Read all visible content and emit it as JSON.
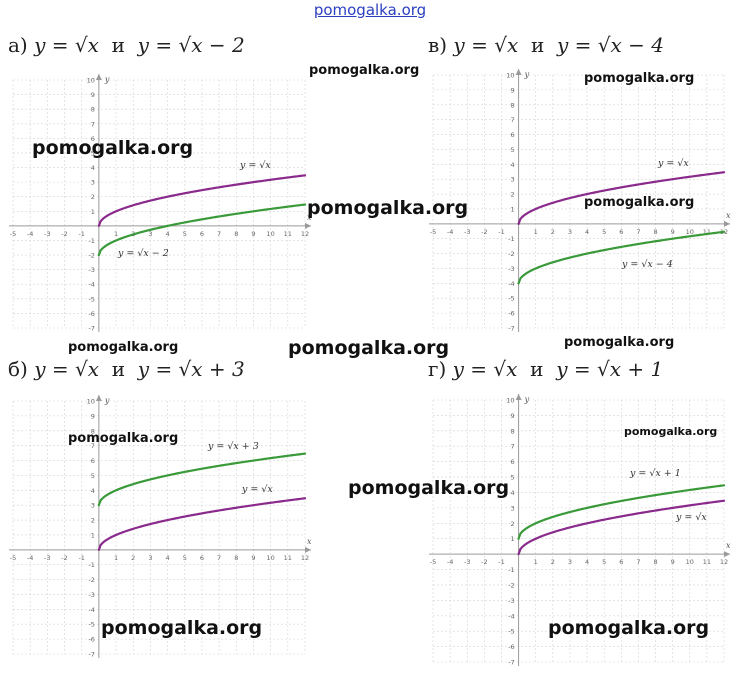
{
  "header": {
    "site": "pomogalka.org"
  },
  "watermarks": [
    "pomogalka.org",
    "pomogalka.org",
    "pomogalka.org",
    "pomogalka.org",
    "pomogalka.org",
    "pomogalka.org",
    "pomogalka.org",
    "pomogalka.org",
    "pomogalka.org",
    "pomogalka.org",
    "pomogalka.org",
    "pomogalka.org",
    "pomogalka.org"
  ],
  "colors": {
    "base_curve": "#8a2a8c",
    "shifted_curve": "#3a9a3a",
    "grid": "#d4d4d4",
    "axis": "#9a9a9a"
  },
  "chart_data": [
    {
      "type": "line",
      "title": {
        "letter": "а)",
        "eq1": "y = √x",
        "conj": "и",
        "eq2": "y = √x − 2"
      },
      "xlabel": "x",
      "ylabel": "y",
      "xlim": [
        -5,
        12
      ],
      "ylim": [
        -7,
        10
      ],
      "xticks": [
        "-5",
        "-4",
        "-3",
        "-2",
        "-1",
        "1",
        "2",
        "3",
        "4",
        "5",
        "6",
        "7",
        "8",
        "9",
        "10",
        "11",
        "12"
      ],
      "yticks": [
        "10",
        "9",
        "8",
        "7",
        "6",
        "5",
        "4",
        "3",
        "2",
        "1",
        "-1",
        "-2",
        "-3",
        "-4",
        "-5",
        "-6",
        "-7"
      ],
      "series": [
        {
          "name": "y = √x",
          "color": "#8a2a8c",
          "shift": 0,
          "x": [
            0,
            1,
            4,
            9,
            12
          ],
          "y": [
            0,
            1,
            2,
            3,
            3.46
          ]
        },
        {
          "name": "y = √x − 2",
          "color": "#3a9a3a",
          "shift": -2,
          "x": [
            0,
            1,
            4,
            9,
            12
          ],
          "y": [
            -2,
            -1,
            0,
            1,
            1.46
          ]
        }
      ]
    },
    {
      "type": "line",
      "title": {
        "letter": "в)",
        "eq1": "y = √x",
        "conj": "и",
        "eq2": "y = √x − 4"
      },
      "xlabel": "x",
      "ylabel": "y",
      "xlim": [
        -5,
        12
      ],
      "ylim": [
        -7,
        10
      ],
      "xticks": [
        "-5",
        "-4",
        "-3",
        "-2",
        "-1",
        "1",
        "2",
        "3",
        "4",
        "5",
        "6",
        "7",
        "8",
        "9",
        "10",
        "11",
        "12"
      ],
      "yticks": [
        "10",
        "9",
        "8",
        "7",
        "6",
        "5",
        "4",
        "3",
        "2",
        "1",
        "-1",
        "-2",
        "-3",
        "-4",
        "-5",
        "-6",
        "-7"
      ],
      "series": [
        {
          "name": "y = √x",
          "color": "#8a2a8c",
          "shift": 0,
          "x": [
            0,
            1,
            4,
            9,
            12
          ],
          "y": [
            0,
            1,
            2,
            3,
            3.46
          ]
        },
        {
          "name": "y = √x − 4",
          "color": "#3a9a3a",
          "shift": -4,
          "x": [
            0,
            1,
            4,
            9,
            12
          ],
          "y": [
            -4,
            -3,
            -2,
            -1,
            -0.54
          ]
        }
      ]
    },
    {
      "type": "line",
      "title": {
        "letter": "б)",
        "eq1": "y = √x",
        "conj": "и",
        "eq2": "y = √x + 3"
      },
      "xlabel": "x",
      "ylabel": "y",
      "xlim": [
        -5,
        12
      ],
      "ylim": [
        -7,
        10
      ],
      "xticks": [
        "-5",
        "-4",
        "-3",
        "-2",
        "-1",
        "1",
        "2",
        "3",
        "4",
        "5",
        "6",
        "7",
        "8",
        "9",
        "10",
        "11",
        "12"
      ],
      "yticks": [
        "10",
        "9",
        "8",
        "7",
        "6",
        "5",
        "4",
        "3",
        "2",
        "1",
        "-1",
        "-2",
        "-3",
        "-4",
        "-5",
        "-6",
        "-7"
      ],
      "series": [
        {
          "name": "y = √x + 3",
          "color": "#3a9a3a",
          "shift": 3,
          "x": [
            0,
            1,
            4,
            9,
            12
          ],
          "y": [
            3,
            4,
            5,
            6,
            6.46
          ]
        },
        {
          "name": "y = √x",
          "color": "#8a2a8c",
          "shift": 0,
          "x": [
            0,
            1,
            4,
            9,
            12
          ],
          "y": [
            0,
            1,
            2,
            3,
            3.46
          ]
        }
      ]
    },
    {
      "type": "line",
      "title": {
        "letter": "г)",
        "eq1": "y = √x",
        "conj": "и",
        "eq2": "y = √x + 1"
      },
      "xlabel": "x",
      "ylabel": "y",
      "xlim": [
        -5,
        12
      ],
      "ylim": [
        -7,
        10
      ],
      "xticks": [
        "-5",
        "-4",
        "-3",
        "-2",
        "-1",
        "1",
        "2",
        "3",
        "4",
        "5",
        "6",
        "7",
        "8",
        "9",
        "10",
        "11",
        "12"
      ],
      "yticks": [
        "10",
        "9",
        "8",
        "7",
        "6",
        "5",
        "4",
        "3",
        "2",
        "1",
        "-1",
        "-2",
        "-3",
        "-4",
        "-5",
        "-6",
        "-7"
      ],
      "series": [
        {
          "name": "y = √x + 1",
          "color": "#3a9a3a",
          "shift": 1,
          "x": [
            0,
            1,
            4,
            9,
            12
          ],
          "y": [
            1,
            2,
            3,
            4,
            4.46
          ]
        },
        {
          "name": "y = √x",
          "color": "#8a2a8c",
          "shift": 0,
          "x": [
            0,
            1,
            4,
            9,
            12
          ],
          "y": [
            0,
            1,
            2,
            3,
            3.46
          ]
        }
      ]
    }
  ]
}
